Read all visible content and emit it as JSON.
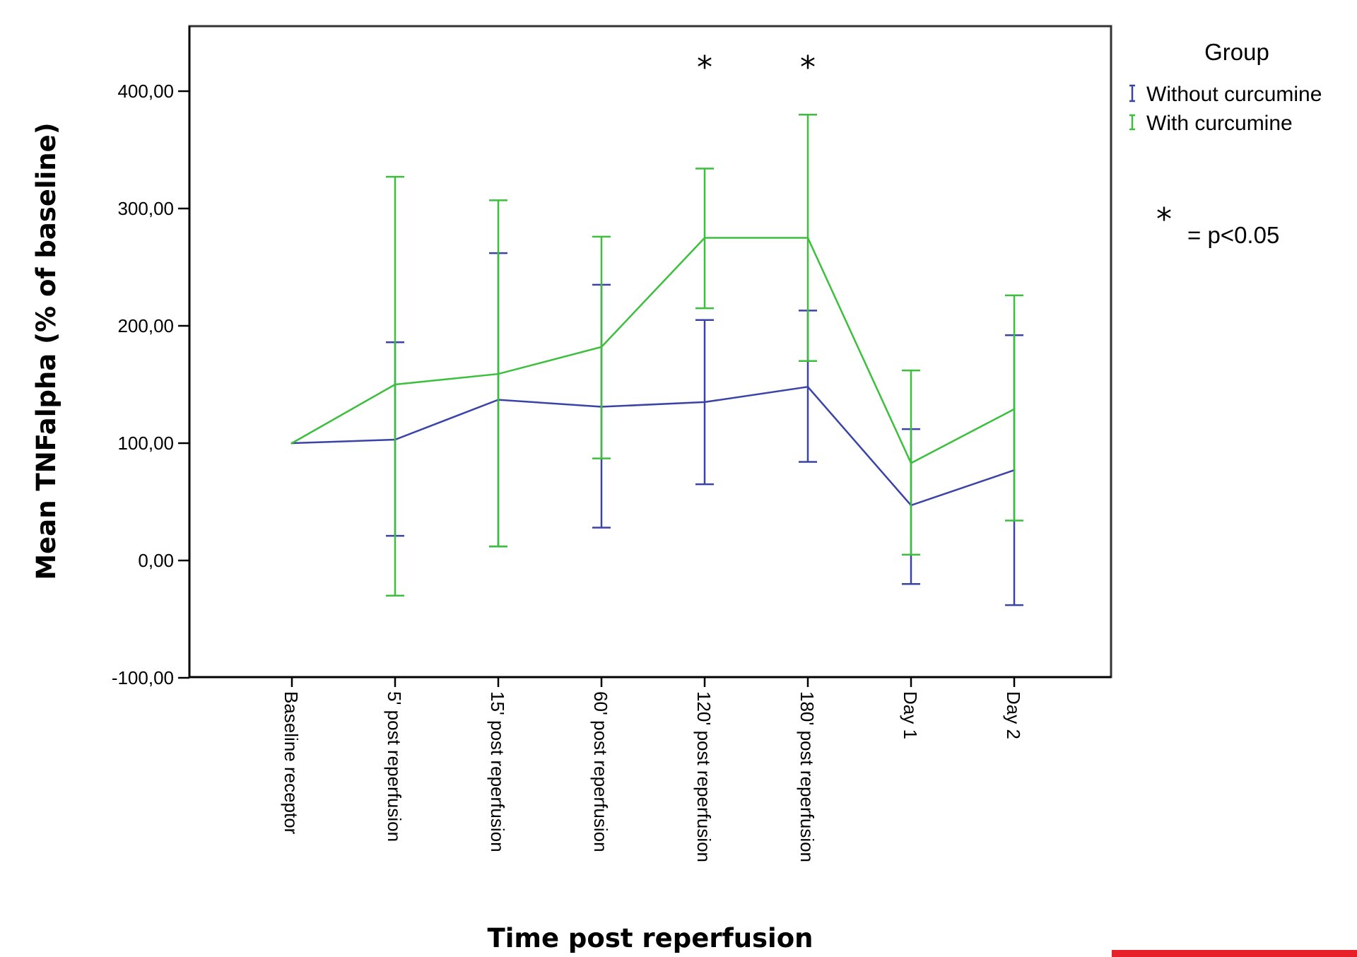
{
  "chart_data": {
    "type": "line",
    "xlabel": "Time post reperfusion",
    "ylabel": "Mean TNFalpha (% of baseline)",
    "ylim": [
      -100,
      450
    ],
    "yticks": [
      {
        "value": -100,
        "label": "-100,00"
      },
      {
        "value": 0,
        "label": "0,00"
      },
      {
        "value": 100,
        "label": "100,00"
      },
      {
        "value": 200,
        "label": "200,00"
      },
      {
        "value": 300,
        "label": "300,00"
      },
      {
        "value": 400,
        "label": "400,00"
      }
    ],
    "categories": [
      "Baseline receptor",
      "5' post reperfusion",
      "15' post reperfusion",
      "60' post reperfusion",
      "120' post reperfusion",
      "180' post reperfusion",
      "Day 1",
      "Day 2"
    ],
    "legend": {
      "title": "Group",
      "position": "top-right"
    },
    "series": [
      {
        "name": "Without curcumine",
        "color": "#3a44a6",
        "values": [
          100,
          103,
          137,
          131,
          135,
          148,
          47,
          77
        ],
        "error_low": [
          100,
          21,
          12,
          28,
          65,
          84,
          -20,
          -38
        ],
        "error_high": [
          100,
          186,
          262,
          235,
          205,
          213,
          112,
          192
        ]
      },
      {
        "name": "With curcumine",
        "color": "#3cbf3c",
        "values": [
          100,
          150,
          159,
          182,
          275,
          275,
          83,
          129
        ],
        "error_low": [
          100,
          -30,
          12,
          87,
          215,
          170,
          5,
          34
        ],
        "error_high": [
          100,
          327,
          307,
          276,
          334,
          380,
          162,
          226
        ]
      }
    ],
    "significance": {
      "marker": "*",
      "categories": [
        "120' post reperfusion",
        "180' post reperfusion"
      ],
      "legend_symbol": "*",
      "legend_text": "= p<0.05"
    },
    "grid": false
  },
  "colors": {
    "axis": "#000000",
    "frame": "#333333",
    "corner_bar": "#e8202a"
  }
}
